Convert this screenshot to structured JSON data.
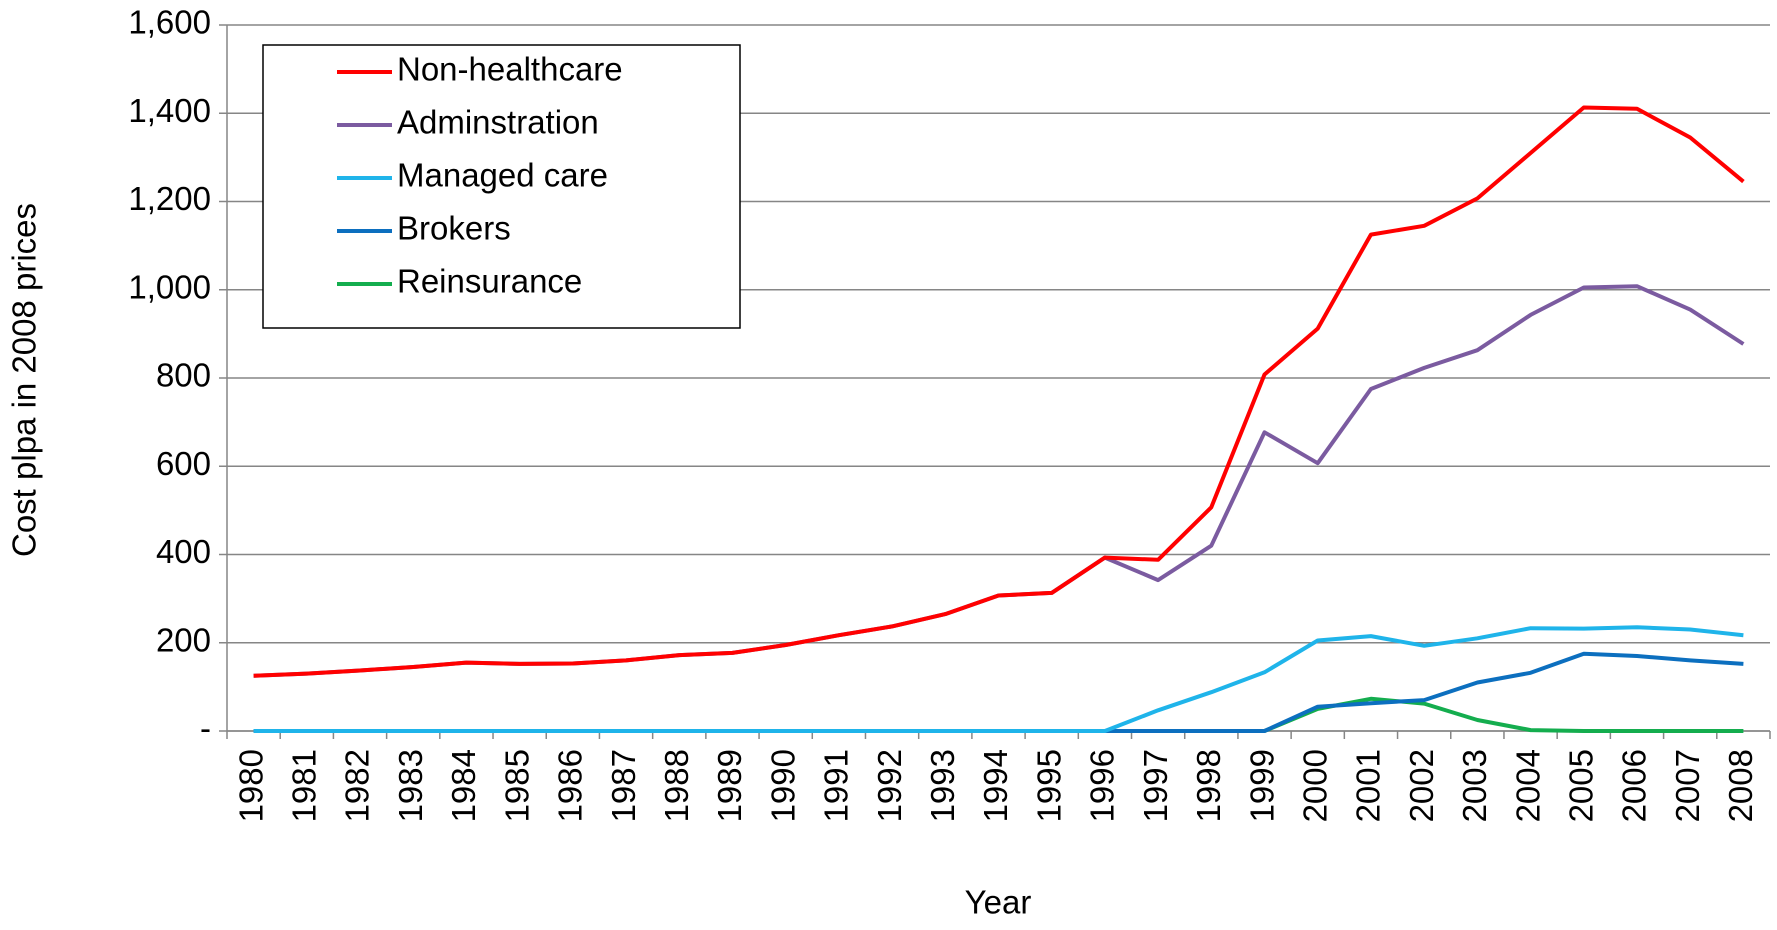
{
  "chart_data": {
    "type": "line",
    "x_label": "Year",
    "y_label": "Cost plpa in 2008 prices",
    "categories": [
      "1980",
      "1981",
      "1982",
      "1983",
      "1984",
      "1985",
      "1986",
      "1987",
      "1988",
      "1989",
      "1990",
      "1991",
      "1992",
      "1993",
      "1994",
      "1995",
      "1996",
      "1997",
      "1998",
      "1999",
      "2000",
      "2001",
      "2002",
      "2003",
      "2004",
      "2005",
      "2006",
      "2007",
      "2008"
    ],
    "ylim": [
      0,
      1600
    ],
    "yticks": [
      {
        "value": 0,
        "label": "-"
      },
      {
        "value": 200,
        "label": "200"
      },
      {
        "value": 400,
        "label": "400"
      },
      {
        "value": 600,
        "label": "600"
      },
      {
        "value": 800,
        "label": "800"
      },
      {
        "value": 1000,
        "label": "1,000"
      },
      {
        "value": 1200,
        "label": "1,200"
      },
      {
        "value": 1400,
        "label": "1,400"
      },
      {
        "value": 1600,
        "label": "1,600"
      }
    ],
    "grid": true,
    "legend": "upper left",
    "series": [
      {
        "name": "Non-healthcare",
        "color": "#ff0000",
        "values": [
          125,
          130,
          137,
          145,
          155,
          152,
          153,
          160,
          172,
          177,
          195,
          217,
          237,
          265,
          307,
          313,
          393,
          388,
          507,
          808,
          912,
          1125,
          1145,
          1207,
          1310,
          1413,
          1410,
          1345,
          1245
        ]
      },
      {
        "name": "Adminstration",
        "color": "#7b5ba0",
        "values": [
          125,
          130,
          137,
          145,
          155,
          152,
          153,
          160,
          172,
          177,
          195,
          217,
          237,
          265,
          307,
          313,
          393,
          342,
          420,
          677,
          607,
          775,
          823,
          863,
          943,
          1005,
          1008,
          955,
          877
        ]
      },
      {
        "name": "Managed care",
        "color": "#1fb4ea",
        "values": [
          0,
          0,
          0,
          0,
          0,
          0,
          0,
          0,
          0,
          0,
          0,
          0,
          0,
          0,
          0,
          0,
          0,
          47,
          88,
          133,
          205,
          215,
          193,
          210,
          233,
          232,
          235,
          230,
          217
        ]
      },
      {
        "name": "Brokers",
        "color": "#0c6fbf",
        "values": [
          0,
          0,
          0,
          0,
          0,
          0,
          0,
          0,
          0,
          0,
          0,
          0,
          0,
          0,
          0,
          0,
          0,
          0,
          0,
          0,
          55,
          63,
          70,
          110,
          132,
          175,
          170,
          160,
          152
        ]
      },
      {
        "name": "Reinsurance",
        "color": "#14ad4e",
        "values": [
          0,
          0,
          0,
          0,
          0,
          0,
          0,
          0,
          0,
          0,
          0,
          0,
          0,
          0,
          0,
          0,
          0,
          0,
          0,
          0,
          50,
          73,
          62,
          25,
          2,
          0,
          0,
          0,
          0
        ]
      }
    ]
  }
}
